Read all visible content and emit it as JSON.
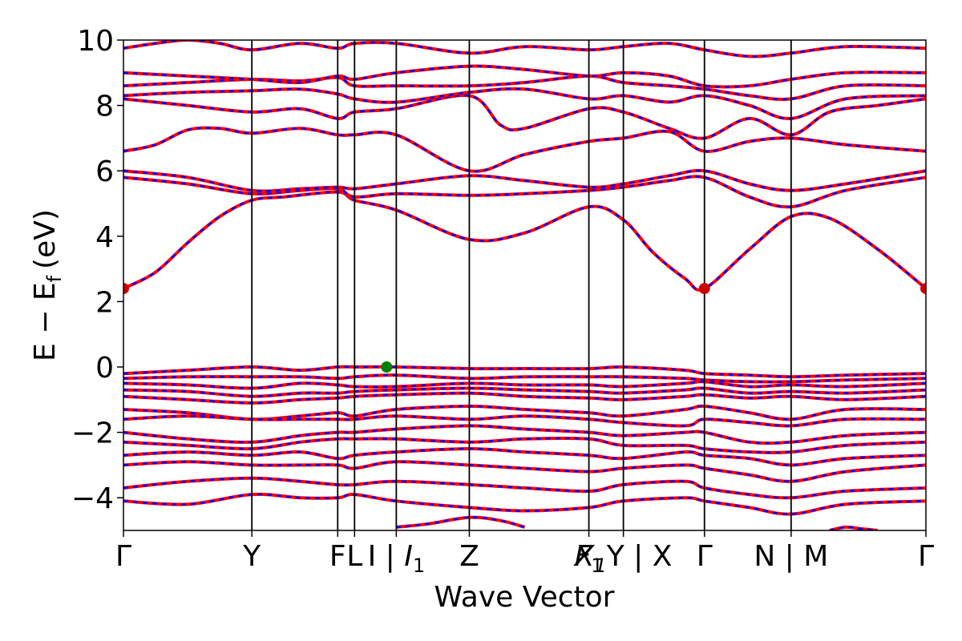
{
  "chart_data": {
    "type": "line",
    "title": "",
    "xlabel": "Wave Vector",
    "ylabel": "E − E",
    "ylabel_subscript": "f",
    "ylabel_unit": "(eV)",
    "ylim": [
      -5,
      10
    ],
    "xlim": [
      0,
      1
    ],
    "y_ticks": [
      -4,
      -2,
      0,
      2,
      4,
      6,
      8,
      10
    ],
    "y_tick_labels": [
      "−4",
      "−2",
      "0",
      "2",
      "4",
      "6",
      "8",
      "10"
    ],
    "grid": false,
    "line_colors": {
      "solid": "#ff0000",
      "dashed": "#0000ff"
    },
    "marker_colors": {
      "cbm": "#cc0000",
      "vbm": "#008000"
    },
    "kpoints": [
      {
        "x": 0.0,
        "label": "Γ"
      },
      {
        "x": 0.16,
        "label": "Y"
      },
      {
        "x": 0.267,
        "label": "F"
      },
      {
        "x": 0.288,
        "label": "L"
      },
      {
        "x": 0.34,
        "label": "I | ",
        "sub_label": "I",
        "sub": "1"
      },
      {
        "x": 0.431,
        "label": "Z"
      },
      {
        "x": 0.58,
        "label": "F",
        "sub": "1",
        "italic": true
      },
      {
        "x": 0.623,
        "label": "Y | X",
        "prefix_label": "X",
        "prefix_sub": "1",
        "prefix_italic": true
      },
      {
        "x": 0.724,
        "label": "Γ"
      },
      {
        "x": 0.832,
        "label": "N | M"
      },
      {
        "x": 1.0,
        "label": "Γ"
      }
    ],
    "band_extrema": [
      {
        "name": "CBM",
        "x": 0.0,
        "y": 2.4
      },
      {
        "name": "CBM",
        "x": 0.724,
        "y": 2.4
      },
      {
        "name": "CBM",
        "x": 1.0,
        "y": 2.4
      },
      {
        "name": "VBM",
        "x": 0.328,
        "y": 0.0
      }
    ],
    "series": [
      {
        "x": [
          0,
          0.04,
          0.08,
          0.12,
          0.16,
          0.2,
          0.267,
          0.288,
          0.34,
          0.431,
          0.5,
          0.58,
          0.623,
          0.66,
          0.7,
          0.724,
          0.78,
          0.832,
          0.88,
          0.94,
          1.0
        ],
        "y": [
          2.4,
          2.9,
          3.8,
          4.6,
          5.1,
          5.2,
          5.35,
          5.1,
          4.8,
          3.9,
          4.1,
          4.9,
          4.5,
          3.5,
          2.7,
          2.4,
          3.6,
          4.6,
          4.55,
          3.6,
          2.4
        ]
      },
      {
        "x": [
          0,
          0.08,
          0.16,
          0.22,
          0.267,
          0.288,
          0.34,
          0.431,
          0.5,
          0.58,
          0.623,
          0.68,
          0.724,
          0.78,
          0.832,
          0.9,
          1.0
        ],
        "y": [
          5.8,
          5.6,
          5.3,
          5.4,
          5.45,
          5.2,
          5.3,
          5.25,
          5.3,
          5.4,
          5.5,
          5.7,
          5.8,
          5.2,
          4.9,
          5.4,
          5.8
        ]
      },
      {
        "x": [
          0,
          0.08,
          0.16,
          0.22,
          0.267,
          0.288,
          0.34,
          0.431,
          0.5,
          0.58,
          0.623,
          0.68,
          0.724,
          0.78,
          0.832,
          0.9,
          1.0
        ],
        "y": [
          6.0,
          5.8,
          5.4,
          5.45,
          5.5,
          5.45,
          5.6,
          5.85,
          5.7,
          5.5,
          5.6,
          5.85,
          6.0,
          5.6,
          5.4,
          5.6,
          6.0
        ]
      },
      {
        "x": [
          0,
          0.04,
          0.08,
          0.12,
          0.16,
          0.22,
          0.267,
          0.288,
          0.34,
          0.431,
          0.5,
          0.58,
          0.623,
          0.68,
          0.724,
          0.78,
          0.832,
          0.9,
          1.0
        ],
        "y": [
          6.6,
          6.8,
          7.25,
          7.3,
          7.15,
          7.3,
          7.1,
          7.1,
          7.1,
          6.0,
          6.5,
          6.9,
          7.0,
          7.2,
          6.6,
          6.9,
          7.0,
          6.8,
          6.6
        ]
      },
      {
        "x": [
          0,
          0.08,
          0.16,
          0.22,
          0.267,
          0.288,
          0.34,
          0.431,
          0.47,
          0.5,
          0.58,
          0.623,
          0.68,
          0.724,
          0.78,
          0.832,
          0.88,
          0.94,
          1.0
        ],
        "y": [
          8.2,
          8.0,
          7.8,
          7.9,
          7.6,
          7.8,
          7.9,
          8.3,
          7.4,
          7.3,
          7.9,
          7.8,
          7.3,
          7.0,
          7.6,
          7.1,
          7.8,
          8.0,
          8.2
        ]
      },
      {
        "x": [
          0,
          0.08,
          0.16,
          0.22,
          0.267,
          0.288,
          0.34,
          0.431,
          0.5,
          0.58,
          0.623,
          0.68,
          0.724,
          0.78,
          0.832,
          0.9,
          1.0
        ],
        "y": [
          8.3,
          8.4,
          8.45,
          8.5,
          8.35,
          8.2,
          8.1,
          8.4,
          8.5,
          8.2,
          8.3,
          8.1,
          8.3,
          8.0,
          7.6,
          8.2,
          8.3
        ]
      },
      {
        "x": [
          0,
          0.08,
          0.16,
          0.22,
          0.267,
          0.288,
          0.34,
          0.431,
          0.5,
          0.58,
          0.623,
          0.68,
          0.724,
          0.78,
          0.832,
          0.9,
          1.0
        ],
        "y": [
          8.6,
          8.7,
          8.8,
          8.75,
          8.85,
          8.6,
          8.6,
          8.6,
          8.7,
          8.9,
          8.7,
          8.6,
          8.5,
          8.3,
          8.2,
          8.6,
          8.6
        ]
      },
      {
        "x": [
          0,
          0.08,
          0.16,
          0.22,
          0.267,
          0.288,
          0.34,
          0.431,
          0.5,
          0.58,
          0.623,
          0.68,
          0.724,
          0.78,
          0.832,
          0.9,
          1.0
        ],
        "y": [
          9.0,
          8.9,
          8.8,
          8.7,
          8.9,
          8.8,
          9.0,
          9.2,
          9.1,
          8.9,
          9.0,
          8.9,
          8.6,
          8.6,
          8.8,
          9.0,
          9.0
        ]
      },
      {
        "x": [
          0,
          0.04,
          0.08,
          0.12,
          0.16,
          0.22,
          0.267,
          0.288,
          0.34,
          0.431,
          0.5,
          0.58,
          0.623,
          0.68,
          0.724,
          0.78,
          0.832,
          0.9,
          1.0
        ],
        "y": [
          9.75,
          9.9,
          10.0,
          9.9,
          9.7,
          9.9,
          9.75,
          9.9,
          9.9,
          9.6,
          9.8,
          9.7,
          9.8,
          9.9,
          9.7,
          9.5,
          9.6,
          9.8,
          9.75
        ]
      },
      {
        "x": [
          0,
          0.08,
          0.16,
          0.22,
          0.267,
          0.288,
          0.34,
          0.431,
          0.5,
          0.58,
          0.623,
          0.7,
          0.724,
          0.78,
          0.832,
          0.9,
          1.0
        ],
        "y": [
          -0.2,
          -0.1,
          0.0,
          -0.1,
          0.0,
          0.0,
          0.0,
          -0.05,
          -0.05,
          -0.05,
          0.0,
          -0.1,
          -0.2,
          -0.25,
          -0.3,
          -0.25,
          -0.2
        ]
      },
      {
        "x": [
          0,
          0.08,
          0.16,
          0.22,
          0.267,
          0.288,
          0.34,
          0.431,
          0.5,
          0.58,
          0.623,
          0.7,
          0.724,
          0.78,
          0.832,
          0.9,
          1.0
        ],
        "y": [
          -0.35,
          -0.3,
          -0.3,
          -0.3,
          -0.35,
          -0.3,
          -0.25,
          -0.35,
          -0.3,
          -0.3,
          -0.3,
          -0.35,
          -0.4,
          -0.45,
          -0.45,
          -0.4,
          -0.35
        ]
      },
      {
        "x": [
          0,
          0.08,
          0.16,
          0.22,
          0.267,
          0.288,
          0.34,
          0.431,
          0.5,
          0.58,
          0.623,
          0.7,
          0.724,
          0.78,
          0.832,
          0.9,
          1.0
        ],
        "y": [
          -0.5,
          -0.55,
          -0.65,
          -0.5,
          -0.55,
          -0.6,
          -0.6,
          -0.5,
          -0.55,
          -0.55,
          -0.6,
          -0.5,
          -0.45,
          -0.6,
          -0.55,
          -0.6,
          -0.5
        ]
      },
      {
        "x": [
          0,
          0.08,
          0.16,
          0.22,
          0.267,
          0.288,
          0.34,
          0.431,
          0.5,
          0.58,
          0.623,
          0.7,
          0.724,
          0.78,
          0.832,
          0.9,
          1.0
        ],
        "y": [
          -0.7,
          -0.75,
          -0.9,
          -0.8,
          -0.8,
          -0.75,
          -0.7,
          -0.65,
          -0.7,
          -0.75,
          -0.8,
          -0.7,
          -0.65,
          -0.8,
          -0.75,
          -0.8,
          -0.7
        ]
      },
      {
        "x": [
          0,
          0.08,
          0.16,
          0.22,
          0.267,
          0.288,
          0.34,
          0.431,
          0.5,
          0.58,
          0.623,
          0.7,
          0.724,
          0.78,
          0.832,
          0.9,
          1.0
        ],
        "y": [
          -0.9,
          -1.0,
          -1.1,
          -1.0,
          -0.95,
          -0.9,
          -0.85,
          -0.8,
          -0.9,
          -0.95,
          -1.0,
          -0.9,
          -0.85,
          -0.95,
          -0.9,
          -1.0,
          -0.9
        ]
      },
      {
        "x": [
          0,
          0.08,
          0.16,
          0.22,
          0.267,
          0.288,
          0.34,
          0.431,
          0.5,
          0.58,
          0.623,
          0.7,
          0.724,
          0.78,
          0.832,
          0.9,
          1.0
        ],
        "y": [
          -1.3,
          -1.4,
          -1.6,
          -1.5,
          -1.4,
          -1.5,
          -1.3,
          -1.2,
          -1.3,
          -1.4,
          -1.5,
          -1.3,
          -1.2,
          -1.4,
          -1.6,
          -1.3,
          -1.3
        ]
      },
      {
        "x": [
          0,
          0.08,
          0.16,
          0.22,
          0.267,
          0.288,
          0.34,
          0.431,
          0.5,
          0.58,
          0.623,
          0.7,
          0.724,
          0.78,
          0.832,
          0.9,
          1.0
        ],
        "y": [
          -1.6,
          -1.5,
          -1.6,
          -1.6,
          -1.6,
          -1.6,
          -1.5,
          -1.6,
          -1.5,
          -1.6,
          -1.7,
          -1.8,
          -1.6,
          -1.7,
          -1.8,
          -1.6,
          -1.6
        ]
      },
      {
        "x": [
          0,
          0.08,
          0.16,
          0.22,
          0.267,
          0.288,
          0.34,
          0.431,
          0.5,
          0.58,
          0.623,
          0.7,
          0.724,
          0.78,
          0.832,
          0.9,
          1.0
        ],
        "y": [
          -2.0,
          -2.2,
          -2.3,
          -2.1,
          -2.0,
          -2.0,
          -1.9,
          -1.8,
          -1.9,
          -2.0,
          -2.1,
          -2.0,
          -2.0,
          -2.3,
          -2.3,
          -2.1,
          -2.0
        ]
      },
      {
        "x": [
          0,
          0.08,
          0.16,
          0.22,
          0.267,
          0.288,
          0.34,
          0.431,
          0.5,
          0.58,
          0.623,
          0.7,
          0.724,
          0.78,
          0.832,
          0.9,
          1.0
        ],
        "y": [
          -2.3,
          -2.4,
          -2.5,
          -2.3,
          -2.2,
          -2.2,
          -2.2,
          -2.3,
          -2.2,
          -2.2,
          -2.4,
          -2.4,
          -2.5,
          -2.6,
          -2.6,
          -2.4,
          -2.3
        ]
      },
      {
        "x": [
          0,
          0.08,
          0.16,
          0.22,
          0.267,
          0.288,
          0.34,
          0.431,
          0.5,
          0.58,
          0.623,
          0.7,
          0.724,
          0.78,
          0.832,
          0.9,
          1.0
        ],
        "y": [
          -2.7,
          -2.6,
          -2.7,
          -2.6,
          -2.8,
          -2.7,
          -2.6,
          -2.5,
          -2.6,
          -2.7,
          -2.8,
          -2.6,
          -2.7,
          -2.8,
          -3.0,
          -2.8,
          -2.7
        ]
      },
      {
        "x": [
          0,
          0.08,
          0.16,
          0.22,
          0.267,
          0.288,
          0.34,
          0.431,
          0.5,
          0.58,
          0.623,
          0.7,
          0.724,
          0.78,
          0.832,
          0.9,
          1.0
        ],
        "y": [
          -3.0,
          -2.9,
          -3.0,
          -3.0,
          -3.0,
          -3.1,
          -2.9,
          -3.0,
          -3.1,
          -3.2,
          -3.1,
          -3.0,
          -3.1,
          -3.3,
          -3.5,
          -3.2,
          -3.0
        ]
      },
      {
        "x": [
          0,
          0.08,
          0.16,
          0.22,
          0.267,
          0.288,
          0.34,
          0.431,
          0.5,
          0.58,
          0.623,
          0.7,
          0.724,
          0.78,
          0.832,
          0.9,
          1.0
        ],
        "y": [
          -3.7,
          -3.5,
          -3.4,
          -3.5,
          -3.6,
          -3.6,
          -3.5,
          -3.6,
          -3.7,
          -3.8,
          -3.6,
          -3.5,
          -3.7,
          -3.9,
          -4.0,
          -3.8,
          -3.7
        ]
      },
      {
        "x": [
          0,
          0.08,
          0.16,
          0.22,
          0.267,
          0.288,
          0.34,
          0.431,
          0.5,
          0.58,
          0.623,
          0.7,
          0.724,
          0.78,
          0.832,
          0.9,
          1.0
        ],
        "y": [
          -4.1,
          -4.2,
          -3.9,
          -4.0,
          -4.0,
          -3.9,
          -4.1,
          -4.3,
          -4.4,
          -4.3,
          -4.1,
          -4.0,
          -4.1,
          -4.3,
          -4.5,
          -4.2,
          -4.1
        ]
      },
      {
        "x": [
          0.34,
          0.38,
          0.431,
          0.47,
          0.5
        ],
        "y": [
          -4.9,
          -4.8,
          -4.6,
          -4.7,
          -4.9
        ]
      },
      {
        "x": [
          0.88,
          0.9,
          0.92,
          0.94
        ],
        "y": [
          -5.0,
          -4.9,
          -4.95,
          -5.0
        ]
      }
    ]
  }
}
